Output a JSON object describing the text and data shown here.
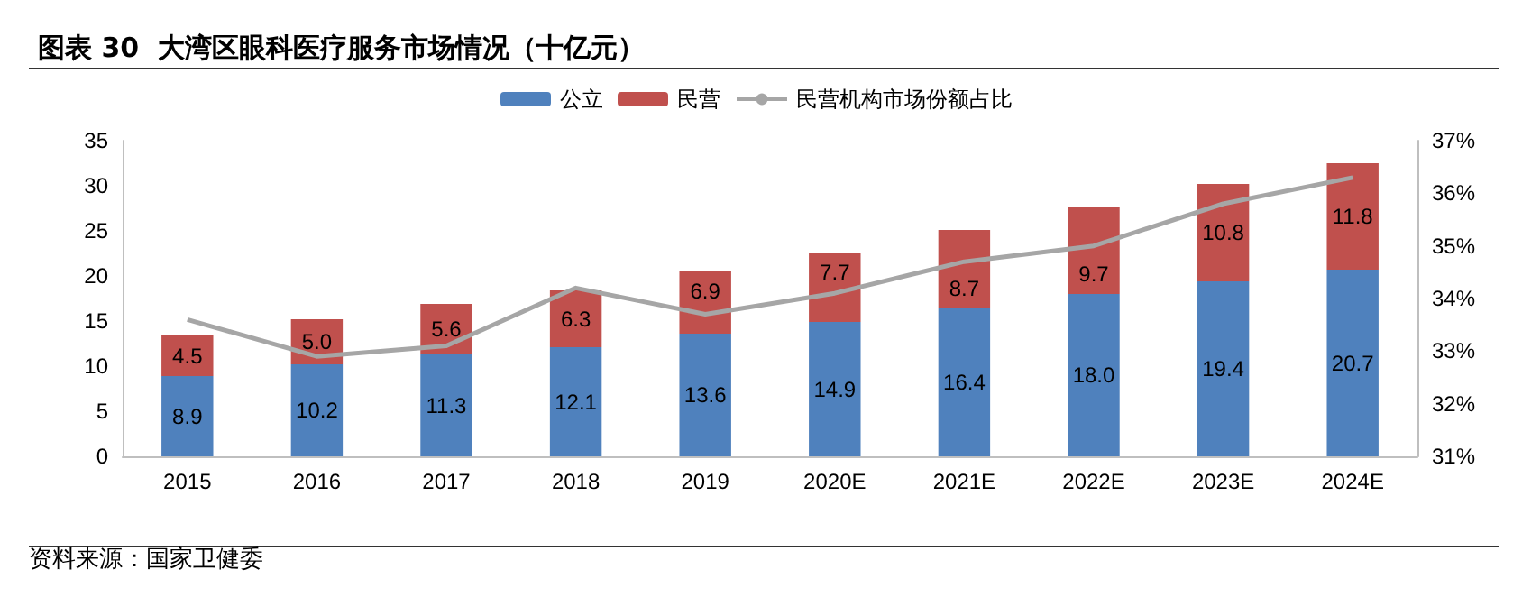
{
  "chart_data": {
    "type": "bar",
    "stacked": true,
    "title": "图表 30  大湾区眼科医疗服务市场情况（十亿元）",
    "categories": [
      "2015",
      "2016",
      "2017",
      "2018",
      "2019",
      "2020E",
      "2021E",
      "2022E",
      "2023E",
      "2024E"
    ],
    "series": [
      {
        "name": "公立",
        "color": "#4f81bd",
        "values": [
          8.9,
          10.2,
          11.3,
          12.1,
          13.6,
          14.9,
          16.4,
          18.0,
          19.4,
          20.7
        ],
        "value_labels": [
          "8.9",
          "10.2",
          "11.3",
          "12.1",
          "13.6",
          "14.9",
          "16.4",
          "18.0",
          "19.4",
          "20.7"
        ]
      },
      {
        "name": "民营",
        "color": "#c0504d",
        "values": [
          4.5,
          5.0,
          5.6,
          6.3,
          6.9,
          7.7,
          8.7,
          9.7,
          10.8,
          11.8
        ],
        "value_labels": [
          "4.5",
          "5.0",
          "5.6",
          "6.3",
          "6.9",
          "7.7",
          "8.7",
          "9.7",
          "10.8",
          "11.8"
        ]
      },
      {
        "name": "民营机构市场份额占比",
        "type": "line",
        "axis": "y2",
        "color": "#a6a6a6",
        "marker": "none",
        "values": [
          33.6,
          32.9,
          33.1,
          34.2,
          33.7,
          34.1,
          34.7,
          35.0,
          35.8,
          36.3
        ]
      }
    ],
    "ylim": [
      0,
      35
    ],
    "yticks": [
      0,
      5,
      10,
      15,
      20,
      25,
      30,
      35
    ],
    "y2lim": [
      31,
      37
    ],
    "y2ticks": [
      {
        "value": 31,
        "label": "31%"
      },
      {
        "value": 32,
        "label": "32%"
      },
      {
        "value": 33,
        "label": "33%"
      },
      {
        "value": 34,
        "label": "34%"
      },
      {
        "value": 35,
        "label": "35%"
      },
      {
        "value": 36,
        "label": "36%"
      },
      {
        "value": 37,
        "label": "37%"
      }
    ],
    "grid": false,
    "legend": "top",
    "annotations": [
      "资料来源：国家卫健委"
    ]
  }
}
